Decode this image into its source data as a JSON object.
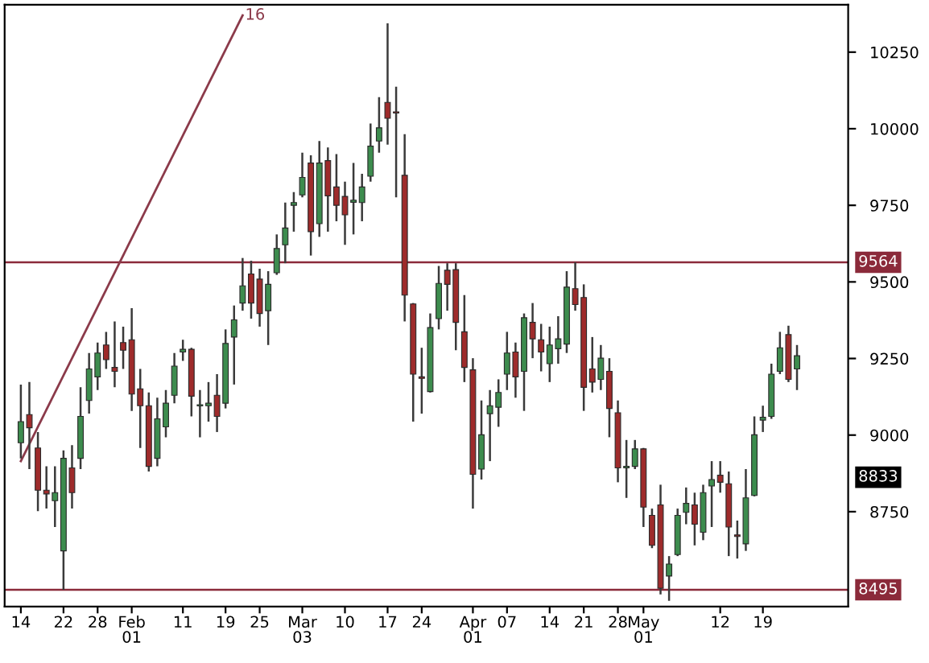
{
  "chart_data": {
    "type": "candlestick",
    "categories": [
      "14",
      null,
      null,
      null,
      null,
      "22",
      null,
      null,
      null,
      "28",
      null,
      null,
      null,
      "Feb\n01",
      null,
      null,
      null,
      null,
      null,
      "11",
      null,
      null,
      null,
      null,
      "19",
      null,
      null,
      null,
      "25",
      null,
      null,
      null,
      null,
      "Mar\n03",
      null,
      null,
      null,
      null,
      "10",
      null,
      null,
      null,
      null,
      "17",
      null,
      null,
      null,
      "24",
      null,
      null,
      null,
      null,
      null,
      "Apr\n01",
      null,
      null,
      null,
      "07",
      null,
      null,
      null,
      null,
      "14",
      null,
      null,
      null,
      "21",
      null,
      null,
      null,
      "28",
      null,
      null,
      "May\n01",
      null,
      null,
      null,
      null,
      null,
      null,
      null,
      null,
      "12",
      null,
      null,
      null,
      null,
      "19",
      null,
      null,
      null,
      null
    ],
    "ohlc": [
      [
        8975,
        9165,
        8924,
        9044
      ],
      [
        9067,
        9173,
        8889,
        9024
      ],
      [
        8958,
        9010,
        8752,
        8820
      ],
      [
        8820,
        8898,
        8760,
        8808
      ],
      [
        8786,
        8898,
        8700,
        8812
      ],
      [
        8622,
        8950,
        8495,
        8924
      ],
      [
        8893,
        8967,
        8760,
        8812
      ],
      [
        8924,
        9156,
        8889,
        9061
      ],
      [
        9113,
        9268,
        9070,
        9216
      ],
      [
        9190,
        9302,
        9147,
        9268
      ],
      [
        9294,
        9337,
        9216,
        9246
      ],
      [
        9221,
        9371,
        9156,
        9208
      ],
      [
        9302,
        9354,
        9216,
        9277
      ],
      [
        9311,
        9414,
        9079,
        9134
      ],
      [
        9151,
        9216,
        8958,
        9096
      ],
      [
        9096,
        9139,
        8881,
        8898
      ],
      [
        8924,
        9122,
        8898,
        9053
      ],
      [
        9027,
        9147,
        8993,
        9104
      ],
      [
        9130,
        9268,
        9104,
        9225
      ],
      [
        9271,
        9311,
        9242,
        9280
      ],
      [
        9280,
        9285,
        9061,
        9127
      ],
      [
        9095,
        9147,
        8993,
        9099
      ],
      [
        9096,
        9173,
        9044,
        9104
      ],
      [
        9130,
        9199,
        9010,
        9061
      ],
      [
        9104,
        9345,
        9087,
        9299
      ],
      [
        9320,
        9423,
        9165,
        9376
      ],
      [
        9431,
        9578,
        9406,
        9487
      ],
      [
        9526,
        9569,
        9380,
        9431
      ],
      [
        9509,
        9543,
        9354,
        9397
      ],
      [
        9406,
        9535,
        9294,
        9492
      ],
      [
        9530,
        9655,
        9523,
        9609
      ],
      [
        9621,
        9759,
        9561,
        9676
      ],
      [
        9750,
        9793,
        9664,
        9759
      ],
      [
        9784,
        9922,
        9776,
        9841
      ],
      [
        9888,
        9913,
        9586,
        9664
      ],
      [
        9690,
        9960,
        9647,
        9888
      ],
      [
        9896,
        9939,
        9664,
        9781
      ],
      [
        9810,
        9917,
        9698,
        9750
      ],
      [
        9779,
        9827,
        9621,
        9719
      ],
      [
        9760,
        9888,
        9655,
        9767
      ],
      [
        9759,
        9853,
        9698,
        9810
      ],
      [
        9845,
        10017,
        9827,
        9943
      ],
      [
        9960,
        10103,
        9922,
        10003
      ],
      [
        10086,
        10344,
        9948,
        10034
      ],
      [
        10055,
        10137,
        9776,
        10051
      ],
      [
        9848,
        9982,
        9371,
        9457
      ],
      [
        9428,
        9431,
        9044,
        9199
      ],
      [
        9190,
        9285,
        9070,
        9185
      ],
      [
        9142,
        9397,
        9139,
        9351
      ],
      [
        9380,
        9552,
        9345,
        9495
      ],
      [
        9538,
        9561,
        9406,
        9492
      ],
      [
        9540,
        9561,
        9277,
        9368
      ],
      [
        9337,
        9457,
        9173,
        9221
      ],
      [
        9213,
        9251,
        8760,
        8872
      ],
      [
        8889,
        9113,
        8855,
        9001
      ],
      [
        9070,
        9147,
        8915,
        9096
      ],
      [
        9091,
        9182,
        9027,
        9139
      ],
      [
        9199,
        9337,
        9147,
        9268
      ],
      [
        9271,
        9302,
        9122,
        9190
      ],
      [
        9208,
        9397,
        9079,
        9383
      ],
      [
        9368,
        9431,
        9251,
        9314
      ],
      [
        9311,
        9363,
        9208,
        9271
      ],
      [
        9233,
        9354,
        9173,
        9294
      ],
      [
        9282,
        9388,
        9233,
        9314
      ],
      [
        9297,
        9535,
        9268,
        9483
      ],
      [
        9478,
        9564,
        9406,
        9426
      ],
      [
        9449,
        9492,
        9079,
        9156
      ],
      [
        9216,
        9320,
        9139,
        9173
      ],
      [
        9182,
        9294,
        9147,
        9251
      ],
      [
        9208,
        9251,
        8993,
        9087
      ],
      [
        9073,
        9113,
        8846,
        8893
      ],
      [
        8893,
        8984,
        8795,
        8898
      ],
      [
        8898,
        8984,
        8889,
        8955
      ],
      [
        8955,
        8958,
        8700,
        8765
      ],
      [
        8738,
        8760,
        8631,
        8640
      ],
      [
        8772,
        8838,
        8480,
        8500
      ],
      [
        8540,
        8605,
        8459,
        8579
      ],
      [
        8610,
        8760,
        8605,
        8738
      ],
      [
        8748,
        8829,
        8709,
        8777
      ],
      [
        8772,
        8812,
        8640,
        8709
      ],
      [
        8683,
        8838,
        8657,
        8812
      ],
      [
        8834,
        8915,
        8700,
        8855
      ],
      [
        8869,
        8915,
        8812,
        8846
      ],
      [
        8841,
        8881,
        8605,
        8700
      ],
      [
        8674,
        8721,
        8597,
        8669
      ],
      [
        8645,
        8889,
        8622,
        8795
      ],
      [
        8803,
        9061,
        8800,
        9001
      ],
      [
        9049,
        9096,
        9010,
        9058
      ],
      [
        9061,
        9233,
        9053,
        9199
      ],
      [
        9208,
        9337,
        9199,
        9285
      ],
      [
        9328,
        9357,
        9173,
        9182
      ],
      [
        9216,
        9294,
        9147,
        9259
      ]
    ],
    "colors": [
      "#3d8c4e",
      "#9e2b2b",
      "#9e2b2b",
      "#9e2b2b",
      "#3d8c4e",
      "#3d8c4e",
      "#9e2b2b",
      "#3d8c4e",
      "#3d8c4e",
      "#3d8c4e",
      "#9e2b2b",
      "#9e2b2b",
      "#9e2b2b",
      "#9e2b2b",
      "#9e2b2b",
      "#9e2b2b",
      "#3d8c4e",
      "#3d8c4e",
      "#3d8c4e",
      "#3d8c4e",
      "#9e2b2b",
      "#3d8c4e",
      "#3d8c4e",
      "#9e2b2b",
      "#3d8c4e",
      "#3d8c4e",
      "#3d8c4e",
      "#9e2b2b",
      "#9e2b2b",
      "#3d8c4e",
      "#3d8c4e",
      "#3d8c4e",
      "#3d8c4e",
      "#3d8c4e",
      "#9e2b2b",
      "#3d8c4e",
      "#9e2b2b",
      "#9e2b2b",
      "#9e2b2b",
      "#3d8c4e",
      "#3d8c4e",
      "#3d8c4e",
      "#3d8c4e",
      "#9e2b2b",
      "#9e2b2b",
      "#9e2b2b",
      "#9e2b2b",
      "#9e2b2b",
      "#3d8c4e",
      "#3d8c4e",
      "#9e2b2b",
      "#9e2b2b",
      "#9e2b2b",
      "#9e2b2b",
      "#3d8c4e",
      "#3d8c4e",
      "#3d8c4e",
      "#3d8c4e",
      "#9e2b2b",
      "#3d8c4e",
      "#9e2b2b",
      "#9e2b2b",
      "#3d8c4e",
      "#3d8c4e",
      "#3d8c4e",
      "#9e2b2b",
      "#9e2b2b",
      "#9e2b2b",
      "#3d8c4e",
      "#9e2b2b",
      "#9e2b2b",
      "#3d8c4e",
      "#3d8c4e",
      "#9e2b2b",
      "#9e2b2b",
      "#9e2b2b",
      "#3d8c4e",
      "#3d8c4e",
      "#3d8c4e",
      "#9e2b2b",
      "#3d8c4e",
      "#3d8c4e",
      "#9e2b2b",
      "#9e2b2b",
      "#9e2b2b",
      "#3d8c4e",
      "#3d8c4e",
      "#3d8c4e",
      "#3d8c4e",
      "#3d8c4e",
      "#9e2b2b",
      "#3d8c4e"
    ],
    "series": [
      {
        "name": "16",
        "type": "line",
        "color": "#8b3a4a",
        "values": [
          8915,
          null,
          null,
          null,
          null,
          null,
          null,
          null,
          null,
          null,
          null,
          null,
          null,
          null,
          null,
          null,
          null,
          null,
          null,
          null,
          null,
          null,
          null,
          null,
          null,
          null,
          10370,
          null,
          null,
          null,
          null,
          null,
          null,
          null,
          null,
          null,
          null,
          null,
          null,
          null,
          null,
          null,
          null,
          null,
          null,
          null,
          null,
          null,
          null,
          null,
          null,
          null,
          null,
          null,
          null,
          null,
          null,
          null,
          null,
          null,
          null,
          null,
          null,
          null,
          null,
          null,
          null,
          null,
          null,
          null,
          null,
          null,
          null,
          null,
          null,
          null,
          null,
          null,
          null,
          null,
          null,
          null,
          null,
          null,
          null,
          null,
          null,
          null,
          null,
          null,
          null,
          null
        ]
      }
    ],
    "ylim": [
      8440,
      10405
    ],
    "yticks": [
      8750,
      9000,
      9250,
      9500,
      9750,
      10000,
      10250
    ],
    "ref_lines": [
      {
        "axis": "y",
        "value": 9564,
        "label": "9564",
        "color": "#8b2a3a"
      },
      {
        "axis": "y",
        "value": 8495,
        "label": "8495",
        "color": "#8b2a3a"
      }
    ],
    "annotations": [
      "8833"
    ],
    "grid": false,
    "legend": false
  }
}
